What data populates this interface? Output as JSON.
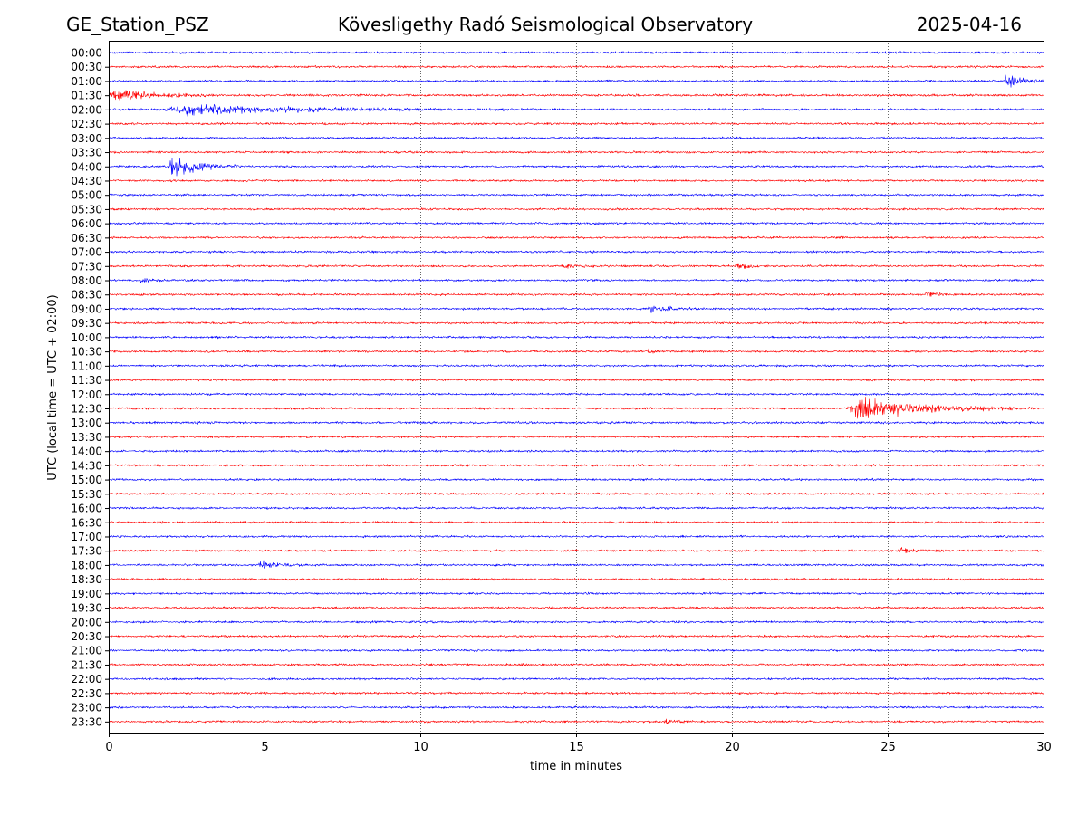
{
  "header": {
    "station": "GE_Station_PSZ",
    "title": "Kövesligethy Radó Seismological Observatory",
    "date": "2025-04-16"
  },
  "chart_data": {
    "type": "line",
    "xlabel": "time in minutes",
    "ylabel": "UTC (local time = UTC + 02:00)",
    "xlim": [
      0,
      30
    ],
    "xticks": [
      "0",
      "5",
      "10",
      "15",
      "20",
      "25",
      "30"
    ],
    "grid": "vertical dotted lines at 5-minute ticks",
    "series_colors": [
      "#0000ff",
      "#ff0000"
    ],
    "rows": [
      {
        "label": "00:00",
        "color": "#0000ff",
        "noise": 1.0,
        "events": []
      },
      {
        "label": "00:30",
        "color": "#ff0000",
        "noise": 1.0,
        "events": []
      },
      {
        "label": "01:00",
        "color": "#0000ff",
        "noise": 1.0,
        "events": [
          {
            "t": 28.7,
            "amp": 6,
            "dur": 1.3
          }
        ]
      },
      {
        "label": "01:30",
        "color": "#ff0000",
        "noise": 1.1,
        "events": [
          {
            "t": 0.0,
            "amp": 5,
            "dur": 3.6
          }
        ]
      },
      {
        "label": "02:00",
        "color": "#0000ff",
        "noise": 1.0,
        "events": [
          {
            "t": 1.8,
            "amp": 4,
            "dur": 11.2
          }
        ]
      },
      {
        "label": "02:30",
        "color": "#ff0000",
        "noise": 1.0,
        "events": []
      },
      {
        "label": "03:00",
        "color": "#0000ff",
        "noise": 1.0,
        "events": []
      },
      {
        "label": "03:30",
        "color": "#ff0000",
        "noise": 1.0,
        "events": []
      },
      {
        "label": "04:00",
        "color": "#0000ff",
        "noise": 1.0,
        "events": [
          {
            "t": 1.9,
            "amp": 9,
            "dur": 2.4
          }
        ]
      },
      {
        "label": "04:30",
        "color": "#ff0000",
        "noise": 1.0,
        "events": []
      },
      {
        "label": "05:00",
        "color": "#0000ff",
        "noise": 1.0,
        "events": []
      },
      {
        "label": "05:30",
        "color": "#ff0000",
        "noise": 1.0,
        "events": []
      },
      {
        "label": "06:00",
        "color": "#0000ff",
        "noise": 1.0,
        "events": []
      },
      {
        "label": "06:30",
        "color": "#ff0000",
        "noise": 1.0,
        "events": []
      },
      {
        "label": "07:00",
        "color": "#0000ff",
        "noise": 1.0,
        "events": []
      },
      {
        "label": "07:30",
        "color": "#ff0000",
        "noise": 1.0,
        "events": [
          {
            "t": 14.5,
            "amp": 2,
            "dur": 1.2
          },
          {
            "t": 20.1,
            "amp": 4,
            "dur": 0.9
          }
        ]
      },
      {
        "label": "08:00",
        "color": "#0000ff",
        "noise": 1.0,
        "events": [
          {
            "t": 1.0,
            "amp": 3,
            "dur": 0.8
          }
        ]
      },
      {
        "label": "08:30",
        "color": "#ff0000",
        "noise": 1.0,
        "events": [
          {
            "t": 26.2,
            "amp": 3,
            "dur": 0.9
          }
        ]
      },
      {
        "label": "09:00",
        "color": "#0000ff",
        "noise": 1.0,
        "events": [
          {
            "t": 17.3,
            "amp": 3,
            "dur": 1.8
          }
        ]
      },
      {
        "label": "09:30",
        "color": "#ff0000",
        "noise": 1.0,
        "events": []
      },
      {
        "label": "10:00",
        "color": "#0000ff",
        "noise": 1.0,
        "events": []
      },
      {
        "label": "10:30",
        "color": "#ff0000",
        "noise": 1.0,
        "events": [
          {
            "t": 17.3,
            "amp": 2,
            "dur": 0.5
          }
        ]
      },
      {
        "label": "11:00",
        "color": "#0000ff",
        "noise": 1.0,
        "events": []
      },
      {
        "label": "11:30",
        "color": "#ff0000",
        "noise": 1.0,
        "events": []
      },
      {
        "label": "12:00",
        "color": "#0000ff",
        "noise": 1.0,
        "events": []
      },
      {
        "label": "12:30",
        "color": "#ff0000",
        "noise": 1.0,
        "events": [
          {
            "t": 23.7,
            "amp": 10,
            "dur": 5.9
          }
        ]
      },
      {
        "label": "13:00",
        "color": "#0000ff",
        "noise": 1.1,
        "events": []
      },
      {
        "label": "13:30",
        "color": "#ff0000",
        "noise": 1.0,
        "events": []
      },
      {
        "label": "14:00",
        "color": "#0000ff",
        "noise": 1.0,
        "events": []
      },
      {
        "label": "14:30",
        "color": "#ff0000",
        "noise": 1.0,
        "events": []
      },
      {
        "label": "15:00",
        "color": "#0000ff",
        "noise": 1.0,
        "events": []
      },
      {
        "label": "15:30",
        "color": "#ff0000",
        "noise": 1.0,
        "events": []
      },
      {
        "label": "16:00",
        "color": "#0000ff",
        "noise": 1.0,
        "events": []
      },
      {
        "label": "16:30",
        "color": "#ff0000",
        "noise": 1.0,
        "events": []
      },
      {
        "label": "17:00",
        "color": "#0000ff",
        "noise": 1.0,
        "events": []
      },
      {
        "label": "17:30",
        "color": "#ff0000",
        "noise": 1.0,
        "events": [
          {
            "t": 25.3,
            "amp": 2,
            "dur": 1.8
          }
        ]
      },
      {
        "label": "18:00",
        "color": "#0000ff",
        "noise": 1.0,
        "events": [
          {
            "t": 4.8,
            "amp": 3,
            "dur": 1.6
          }
        ]
      },
      {
        "label": "18:30",
        "color": "#ff0000",
        "noise": 1.0,
        "events": []
      },
      {
        "label": "19:00",
        "color": "#0000ff",
        "noise": 1.0,
        "events": []
      },
      {
        "label": "19:30",
        "color": "#ff0000",
        "noise": 1.0,
        "events": []
      },
      {
        "label": "20:00",
        "color": "#0000ff",
        "noise": 1.0,
        "events": []
      },
      {
        "label": "20:30",
        "color": "#ff0000",
        "noise": 1.0,
        "events": []
      },
      {
        "label": "21:00",
        "color": "#0000ff",
        "noise": 1.0,
        "events": []
      },
      {
        "label": "21:30",
        "color": "#ff0000",
        "noise": 1.0,
        "events": []
      },
      {
        "label": "22:00",
        "color": "#0000ff",
        "noise": 1.0,
        "events": []
      },
      {
        "label": "22:30",
        "color": "#ff0000",
        "noise": 1.0,
        "events": []
      },
      {
        "label": "23:00",
        "color": "#0000ff",
        "noise": 1.0,
        "events": []
      },
      {
        "label": "23:30",
        "color": "#ff0000",
        "noise": 1.0,
        "events": [
          {
            "t": 17.8,
            "amp": 2,
            "dur": 1.2
          }
        ]
      }
    ]
  }
}
